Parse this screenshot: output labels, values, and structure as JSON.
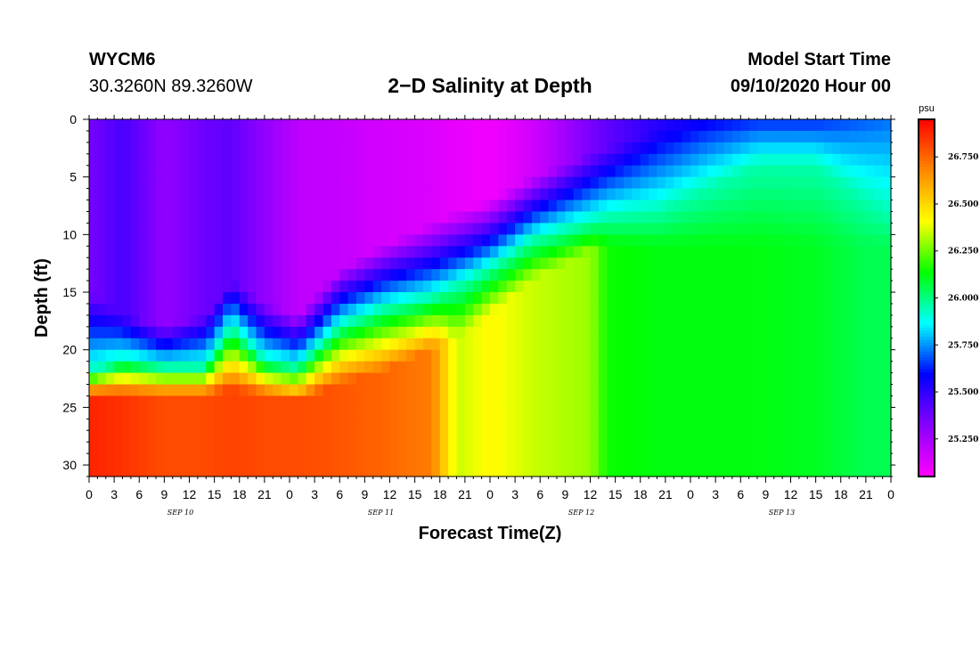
{
  "header": {
    "station": "WYCM6",
    "coords": "30.3260N 89.3260W",
    "title": "2−D Salinity at Depth",
    "start_title": "Model Start Time",
    "start_time": "09/10/2020 Hour 00"
  },
  "chart_data": {
    "type": "heatmap",
    "title": "2−D Salinity at Depth",
    "xlabel": "Forecast Time(Z)",
    "ylabel": "Depth (ft)",
    "x_hours_range": [
      0,
      96
    ],
    "x_tick_labels": [
      "0",
      "3",
      "6",
      "9",
      "12",
      "15",
      "18",
      "21",
      "0",
      "3",
      "6",
      "9",
      "12",
      "15",
      "18",
      "21",
      "0",
      "3",
      "6",
      "9",
      "12",
      "15",
      "18",
      "21",
      "0",
      "3",
      "6",
      "9",
      "12",
      "15",
      "18",
      "21",
      "0"
    ],
    "day_labels": [
      "SEP 10",
      "SEP 11",
      "SEP 12",
      "SEP 13"
    ],
    "y_ticks": [
      0,
      5,
      10,
      15,
      20,
      25,
      30
    ],
    "y_range": [
      0,
      31
    ],
    "colorbar": {
      "unit": "psu",
      "range": [
        25.05,
        26.95
      ],
      "tick_values": [
        25.25,
        25.5,
        25.75,
        26.0,
        26.25,
        26.5,
        26.75
      ],
      "tick_labels": [
        "25.250",
        "25.500",
        "25.750",
        "26.000",
        "26.250",
        "26.500",
        "26.750"
      ],
      "colors": [
        "#ff00ff",
        "#8800ff",
        "#0000ff",
        "#00ffff",
        "#00ff00",
        "#ffff00",
        "#ff8800",
        "#ff0000"
      ]
    },
    "profiles": [
      {
        "hour": 0,
        "top": 25.35,
        "d1": 15,
        "d2": 22,
        "d3": 24,
        "lower": 26.88
      },
      {
        "hour": 4,
        "top": 25.45,
        "d1": 17,
        "d2": 21,
        "d3": 24,
        "lower": 26.85
      },
      {
        "hour": 9,
        "top": 25.3,
        "d1": 18,
        "d2": 21.5,
        "d3": 24,
        "lower": 26.8
      },
      {
        "hour": 14,
        "top": 25.38,
        "d1": 17,
        "d2": 21.5,
        "d3": 24,
        "lower": 26.8
      },
      {
        "hour": 17,
        "top": 25.4,
        "d1": 14,
        "d2": 18,
        "d3": 23.5,
        "lower": 26.82
      },
      {
        "hour": 21,
        "top": 25.3,
        "d1": 16,
        "d2": 21,
        "d3": 24,
        "lower": 26.8
      },
      {
        "hour": 25,
        "top": 25.2,
        "d1": 17,
        "d2": 21.5,
        "d3": 24.5,
        "lower": 26.8
      },
      {
        "hour": 30,
        "top": 25.18,
        "d1": 13,
        "d2": 18,
        "d3": 23,
        "lower": 26.78
      },
      {
        "hour": 35,
        "top": 25.15,
        "d1": 11,
        "d2": 16.5,
        "d3": 22,
        "lower": 26.75
      },
      {
        "hour": 41,
        "top": 25.13,
        "d1": 9,
        "d2": 15.5,
        "d3": 20,
        "lower": 26.7
      },
      {
        "hour": 44,
        "top": 25.1,
        "d1": 8,
        "d2": 14.5,
        "d3": 19,
        "lower": 26.35
      },
      {
        "hour": 48,
        "top": 25.08,
        "d1": 7,
        "d2": 13,
        "d3": 17,
        "lower": 26.42
      },
      {
        "hour": 53,
        "top": 25.15,
        "d1": 5,
        "d2": 10.5,
        "d3": 14,
        "lower": 26.35
      },
      {
        "hour": 60,
        "top": 25.35,
        "d1": 3,
        "d2": 9,
        "d3": 11.5,
        "lower": 26.3
      },
      {
        "hour": 62,
        "top": 25.4,
        "d1": 2.5,
        "d2": 8.5,
        "d3": 11,
        "lower": 26.15
      },
      {
        "hour": 68,
        "top": 25.52,
        "d1": 1,
        "d2": 8,
        "d3": 11,
        "lower": 26.12
      },
      {
        "hour": 74,
        "top": 25.6,
        "d1": 0.5,
        "d2": 6,
        "d3": 11,
        "lower": 26.12
      },
      {
        "hour": 80,
        "top": 25.65,
        "d1": 0.3,
        "d2": 4,
        "d3": 11,
        "lower": 26.12
      },
      {
        "hour": 87,
        "top": 25.65,
        "d1": 0.3,
        "d2": 4,
        "d3": 11,
        "lower": 26.1
      },
      {
        "hour": 93,
        "top": 25.7,
        "d1": 0.3,
        "d2": 7,
        "d3": 11,
        "lower": 26.05
      },
      {
        "hour": 96,
        "top": 25.72,
        "d1": 0.3,
        "d2": 8.5,
        "d3": 11,
        "lower": 26.05
      }
    ]
  }
}
